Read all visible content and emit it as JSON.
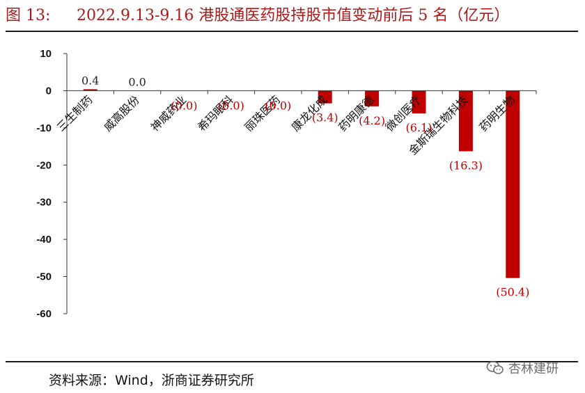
{
  "figure": {
    "label": "图 13:",
    "title": "2022.9.13-9.16 港股通医药股持股市值变动前后 5 名（亿元）",
    "source": "资料来源：Wind，浙商证券研究所",
    "watermark": "杏林建研",
    "watermark_icon": "wechat-icon"
  },
  "chart_data": {
    "type": "bar",
    "categories": [
      "三生制药",
      "威高股份",
      "神威药业",
      "希玛眼科",
      "丽珠医药",
      "康龙化成",
      "药明康德",
      "微创医疗",
      "金斯瑞生物科技",
      "药明生物"
    ],
    "values": [
      0.4,
      0.0,
      -0.0,
      -0.0,
      -0.0,
      -3.4,
      -4.2,
      -6.1,
      -16.3,
      -50.4
    ],
    "data_labels": [
      "0.4",
      "0.0",
      "(0.0)",
      "(0.0)",
      "(0.0)",
      "(3.4)",
      "(4.2)",
      "(6.1)",
      "(16.3)",
      "(50.4)"
    ],
    "ylim": [
      -60,
      10
    ],
    "yticks": [
      10,
      0,
      -10,
      -20,
      -30,
      -40,
      -50,
      -60
    ],
    "grid": false,
    "legend": "none",
    "bar_color": "#c00000",
    "positive_label_color": "#222222",
    "negative_label_color": "#c00000"
  }
}
